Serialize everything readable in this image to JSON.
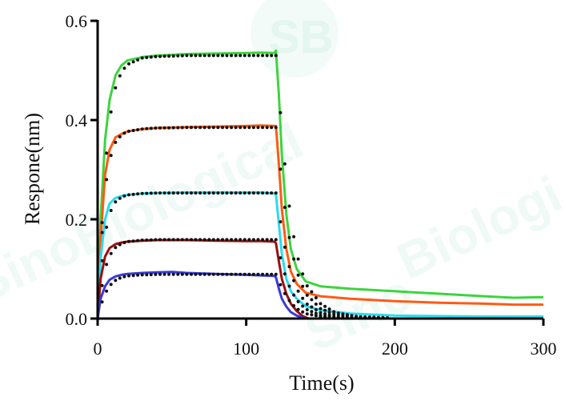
{
  "watermark": {
    "logo_text": "SB",
    "words": [
      "SinoBiological",
      "Sino",
      "Biologi"
    ]
  },
  "chart_data": {
    "type": "line",
    "title": "",
    "xlabel": "Time(s)",
    "ylabel": "Respone(nm)",
    "xlim": [
      0,
      300
    ],
    "ylim": [
      0,
      0.6
    ],
    "xticks": [
      0,
      100,
      200,
      300
    ],
    "yticks": [
      0.0,
      0.2,
      0.4,
      0.6
    ],
    "xtick_labels": [
      "0",
      "100",
      "200",
      "300"
    ],
    "ytick_labels": [
      "0.0",
      "0.2",
      "0.4",
      "0.6"
    ],
    "grid": false,
    "legend": "none",
    "association_end_s": 120,
    "series": [
      {
        "color": "#3dd43d",
        "values": [
          [
            0,
            0
          ],
          [
            2,
            0.2
          ],
          [
            5,
            0.36
          ],
          [
            8,
            0.44
          ],
          [
            12,
            0.49
          ],
          [
            16,
            0.51
          ],
          [
            20,
            0.52
          ],
          [
            30,
            0.527
          ],
          [
            40,
            0.53
          ],
          [
            60,
            0.533
          ],
          [
            80,
            0.534
          ],
          [
            100,
            0.535
          ],
          [
            110,
            0.536
          ],
          [
            119,
            0.535
          ],
          [
            120,
            0.54
          ],
          [
            122,
            0.45
          ],
          [
            124,
            0.33
          ],
          [
            127,
            0.21
          ],
          [
            130,
            0.14
          ],
          [
            134,
            0.1
          ],
          [
            140,
            0.075
          ],
          [
            150,
            0.065
          ],
          [
            170,
            0.06
          ],
          [
            200,
            0.055
          ],
          [
            230,
            0.05
          ],
          [
            260,
            0.045
          ],
          [
            280,
            0.042
          ],
          [
            300,
            0.043
          ]
        ]
      },
      {
        "color": "#ff5a14",
        "values": [
          [
            0,
            0
          ],
          [
            2,
            0.16
          ],
          [
            5,
            0.29
          ],
          [
            8,
            0.34
          ],
          [
            12,
            0.365
          ],
          [
            16,
            0.372
          ],
          [
            20,
            0.377
          ],
          [
            30,
            0.382
          ],
          [
            40,
            0.384
          ],
          [
            60,
            0.386
          ],
          [
            80,
            0.387
          ],
          [
            100,
            0.388
          ],
          [
            110,
            0.389
          ],
          [
            119,
            0.388
          ],
          [
            120,
            0.388
          ],
          [
            122,
            0.31
          ],
          [
            124,
            0.22
          ],
          [
            127,
            0.14
          ],
          [
            130,
            0.095
          ],
          [
            134,
            0.07
          ],
          [
            140,
            0.052
          ],
          [
            150,
            0.045
          ],
          [
            170,
            0.04
          ],
          [
            200,
            0.035
          ],
          [
            230,
            0.032
          ],
          [
            260,
            0.03
          ],
          [
            280,
            0.028
          ],
          [
            300,
            0.028
          ]
        ]
      },
      {
        "color": "#29dcee",
        "values": [
          [
            0,
            0
          ],
          [
            2,
            0.12
          ],
          [
            5,
            0.2
          ],
          [
            8,
            0.232
          ],
          [
            12,
            0.243
          ],
          [
            16,
            0.247
          ],
          [
            20,
            0.249
          ],
          [
            30,
            0.252
          ],
          [
            40,
            0.253
          ],
          [
            60,
            0.254
          ],
          [
            80,
            0.254
          ],
          [
            100,
            0.254
          ],
          [
            110,
            0.254
          ],
          [
            119,
            0.252
          ],
          [
            120,
            0.25
          ],
          [
            122,
            0.19
          ],
          [
            124,
            0.13
          ],
          [
            127,
            0.08
          ],
          [
            130,
            0.055
          ],
          [
            134,
            0.04
          ],
          [
            140,
            0.025
          ],
          [
            150,
            0.017
          ],
          [
            170,
            0.01
          ],
          [
            200,
            0.006
          ],
          [
            230,
            0.005
          ],
          [
            260,
            0.004
          ],
          [
            300,
            0.004
          ]
        ]
      },
      {
        "color": "#9c0f0f",
        "values": [
          [
            0,
            0
          ],
          [
            2,
            0.08
          ],
          [
            5,
            0.125
          ],
          [
            8,
            0.142
          ],
          [
            12,
            0.15
          ],
          [
            16,
            0.153
          ],
          [
            20,
            0.155
          ],
          [
            30,
            0.157
          ],
          [
            40,
            0.158
          ],
          [
            60,
            0.158
          ],
          [
            80,
            0.157
          ],
          [
            100,
            0.156
          ],
          [
            110,
            0.156
          ],
          [
            119,
            0.155
          ],
          [
            120,
            0.152
          ],
          [
            122,
            0.115
          ],
          [
            124,
            0.08
          ],
          [
            127,
            0.05
          ],
          [
            130,
            0.03
          ],
          [
            134,
            0.015
          ],
          [
            138,
            0.005
          ],
          [
            142,
            0.0
          ],
          [
            300,
            0.0
          ]
        ]
      },
      {
        "color": "#3a3ad6",
        "values": [
          [
            0,
            0
          ],
          [
            2,
            0.04
          ],
          [
            5,
            0.065
          ],
          [
            8,
            0.078
          ],
          [
            12,
            0.085
          ],
          [
            16,
            0.088
          ],
          [
            20,
            0.09
          ],
          [
            30,
            0.092
          ],
          [
            40,
            0.093
          ],
          [
            50,
            0.094
          ],
          [
            60,
            0.092
          ],
          [
            80,
            0.09
          ],
          [
            100,
            0.088
          ],
          [
            110,
            0.087
          ],
          [
            119,
            0.086
          ],
          [
            120,
            0.083
          ],
          [
            122,
            0.06
          ],
          [
            124,
            0.04
          ],
          [
            127,
            0.024
          ],
          [
            130,
            0.013
          ],
          [
            134,
            0.006
          ],
          [
            138,
            0.002
          ],
          [
            142,
            0.0
          ],
          [
            300,
            0.0
          ]
        ]
      }
    ],
    "fits": [
      {
        "color": "#111111",
        "values": [
          [
            0,
            0
          ],
          [
            2,
            0.14
          ],
          [
            5,
            0.3
          ],
          [
            8,
            0.4
          ],
          [
            12,
            0.465
          ],
          [
            16,
            0.497
          ],
          [
            20,
            0.512
          ],
          [
            30,
            0.525
          ],
          [
            40,
            0.528
          ],
          [
            60,
            0.53
          ],
          [
            80,
            0.53
          ],
          [
            100,
            0.53
          ],
          [
            120,
            0.53
          ],
          [
            122,
            0.455
          ],
          [
            124,
            0.375
          ],
          [
            127,
            0.28
          ],
          [
            130,
            0.2
          ],
          [
            134,
            0.13
          ],
          [
            140,
            0.07
          ],
          [
            150,
            0.03
          ],
          [
            160,
            0.012
          ],
          [
            175,
            0.004
          ],
          [
            200,
            0.001
          ],
          [
            300,
            0.0
          ]
        ]
      },
      {
        "color": "#111111",
        "values": [
          [
            0,
            0
          ],
          [
            2,
            0.13
          ],
          [
            5,
            0.26
          ],
          [
            8,
            0.32
          ],
          [
            12,
            0.355
          ],
          [
            16,
            0.37
          ],
          [
            20,
            0.377
          ],
          [
            30,
            0.382
          ],
          [
            40,
            0.384
          ],
          [
            60,
            0.385
          ],
          [
            80,
            0.385
          ],
          [
            100,
            0.385
          ],
          [
            120,
            0.385
          ],
          [
            122,
            0.33
          ],
          [
            124,
            0.272
          ],
          [
            127,
            0.2
          ],
          [
            130,
            0.145
          ],
          [
            134,
            0.095
          ],
          [
            140,
            0.05
          ],
          [
            150,
            0.02
          ],
          [
            160,
            0.008
          ],
          [
            175,
            0.003
          ],
          [
            200,
            0.0
          ],
          [
            300,
            0.0
          ]
        ]
      },
      {
        "color": "#111111",
        "values": [
          [
            0,
            0
          ],
          [
            2,
            0.09
          ],
          [
            5,
            0.17
          ],
          [
            8,
            0.212
          ],
          [
            12,
            0.235
          ],
          [
            16,
            0.245
          ],
          [
            20,
            0.249
          ],
          [
            30,
            0.252
          ],
          [
            40,
            0.253
          ],
          [
            60,
            0.253
          ],
          [
            80,
            0.253
          ],
          [
            100,
            0.253
          ],
          [
            120,
            0.253
          ],
          [
            122,
            0.215
          ],
          [
            124,
            0.175
          ],
          [
            127,
            0.128
          ],
          [
            130,
            0.093
          ],
          [
            134,
            0.06
          ],
          [
            140,
            0.031
          ],
          [
            150,
            0.012
          ],
          [
            160,
            0.004
          ],
          [
            175,
            0.001
          ],
          [
            200,
            0.0
          ],
          [
            300,
            0.0
          ]
        ]
      },
      {
        "color": "#111111",
        "values": [
          [
            0,
            0
          ],
          [
            2,
            0.05
          ],
          [
            5,
            0.1
          ],
          [
            8,
            0.127
          ],
          [
            12,
            0.143
          ],
          [
            16,
            0.151
          ],
          [
            20,
            0.155
          ],
          [
            30,
            0.158
          ],
          [
            40,
            0.159
          ],
          [
            60,
            0.159
          ],
          [
            80,
            0.159
          ],
          [
            100,
            0.159
          ],
          [
            120,
            0.159
          ],
          [
            122,
            0.135
          ],
          [
            124,
            0.11
          ],
          [
            127,
            0.08
          ],
          [
            130,
            0.058
          ],
          [
            134,
            0.037
          ],
          [
            140,
            0.019
          ],
          [
            150,
            0.007
          ],
          [
            160,
            0.002
          ],
          [
            175,
            0.0
          ],
          [
            300,
            0.0
          ]
        ]
      },
      {
        "color": "#111111",
        "values": [
          [
            0,
            0
          ],
          [
            2,
            0.025
          ],
          [
            5,
            0.05
          ],
          [
            8,
            0.066
          ],
          [
            12,
            0.077
          ],
          [
            16,
            0.083
          ],
          [
            20,
            0.086
          ],
          [
            30,
            0.088
          ],
          [
            40,
            0.089
          ],
          [
            60,
            0.089
          ],
          [
            80,
            0.089
          ],
          [
            100,
            0.089
          ],
          [
            120,
            0.089
          ],
          [
            122,
            0.075
          ],
          [
            124,
            0.061
          ],
          [
            127,
            0.045
          ],
          [
            130,
            0.032
          ],
          [
            134,
            0.02
          ],
          [
            140,
            0.01
          ],
          [
            150,
            0.004
          ],
          [
            160,
            0.001
          ],
          [
            175,
            0.0
          ],
          [
            300,
            0.0
          ]
        ]
      }
    ]
  }
}
